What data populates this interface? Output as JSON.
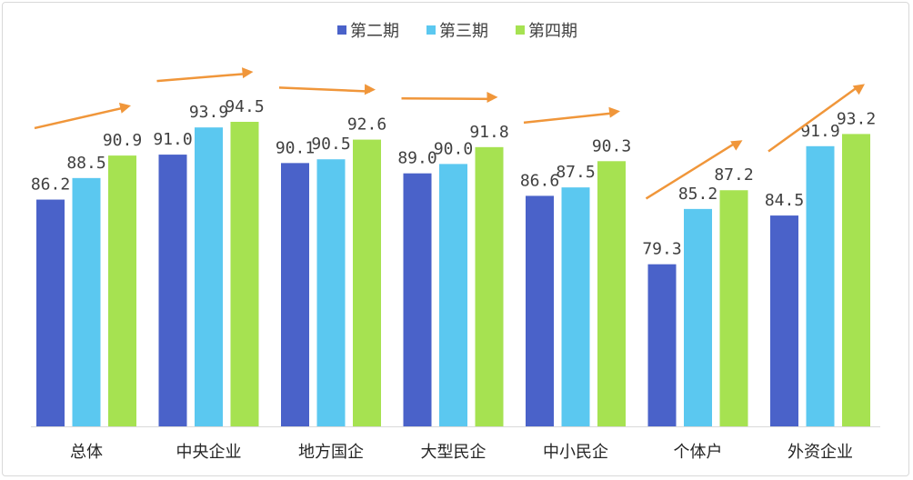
{
  "chart_data": {
    "type": "bar",
    "categories": [
      "总体",
      "中央企业",
      "地方国企",
      "大型民企",
      "中小民企",
      "个体户",
      "外资企业"
    ],
    "series": [
      {
        "name": "第二期",
        "color": "#4a62c9",
        "values": [
          86.2,
          91.0,
          90.1,
          89.0,
          86.6,
          79.3,
          84.5
        ]
      },
      {
        "name": "第三期",
        "color": "#5bc8f0",
        "values": [
          88.5,
          93.9,
          90.5,
          90.0,
          87.5,
          85.2,
          91.9
        ]
      },
      {
        "name": "第四期",
        "color": "#a6e251",
        "values": [
          90.9,
          94.5,
          92.6,
          91.8,
          90.3,
          87.2,
          93.2
        ]
      }
    ],
    "value_labels": [
      [
        "86.2",
        "91.0",
        "90.1",
        "89.0",
        "86.6",
        "79.3",
        "84.5"
      ],
      [
        "88.5",
        "93.9",
        "90.5",
        "90.0",
        "87.5",
        "85.2",
        "91.9"
      ],
      [
        "90.9",
        "94.5",
        "92.6",
        "91.8",
        "90.3",
        "87.2",
        "93.2"
      ]
    ],
    "ylim": [
      62,
      100
    ],
    "grid": false,
    "legend": "top-center",
    "trend_arrows": true,
    "arrow_color": "#f0963a",
    "title": "",
    "xlabel": "",
    "ylabel": ""
  }
}
